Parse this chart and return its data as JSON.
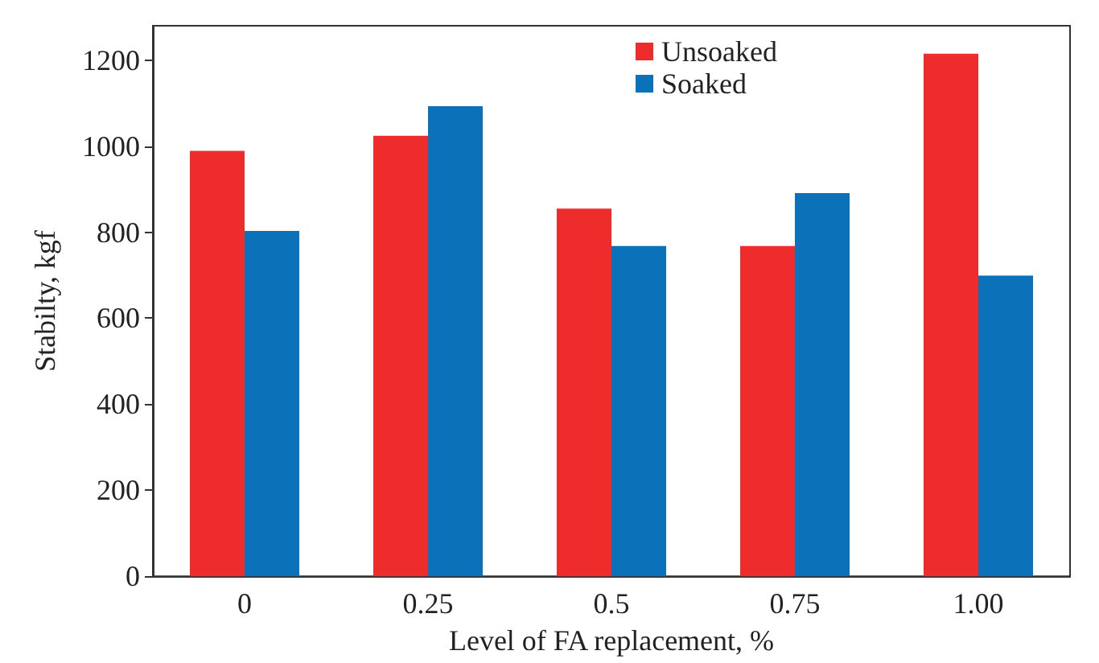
{
  "chart_data": {
    "type": "bar",
    "xlabel": "Level of FA replacement, %",
    "ylabel": "Stabilty, kgf",
    "categories": [
      "0",
      "0.25",
      "0.5",
      "0.75",
      "1.00"
    ],
    "series": [
      {
        "name": "Unsoaked",
        "color": "#ee2c2c",
        "values": [
          989,
          1024,
          855,
          768,
          1215
        ]
      },
      {
        "name": "Soaked",
        "color": "#0b71b9",
        "values": [
          803,
          1093,
          768,
          891,
          699
        ]
      }
    ],
    "ylim": [
      0,
      1280
    ],
    "yticks": [
      0,
      200,
      400,
      600,
      800,
      1000,
      1200
    ],
    "grid": false,
    "legend": "top"
  }
}
